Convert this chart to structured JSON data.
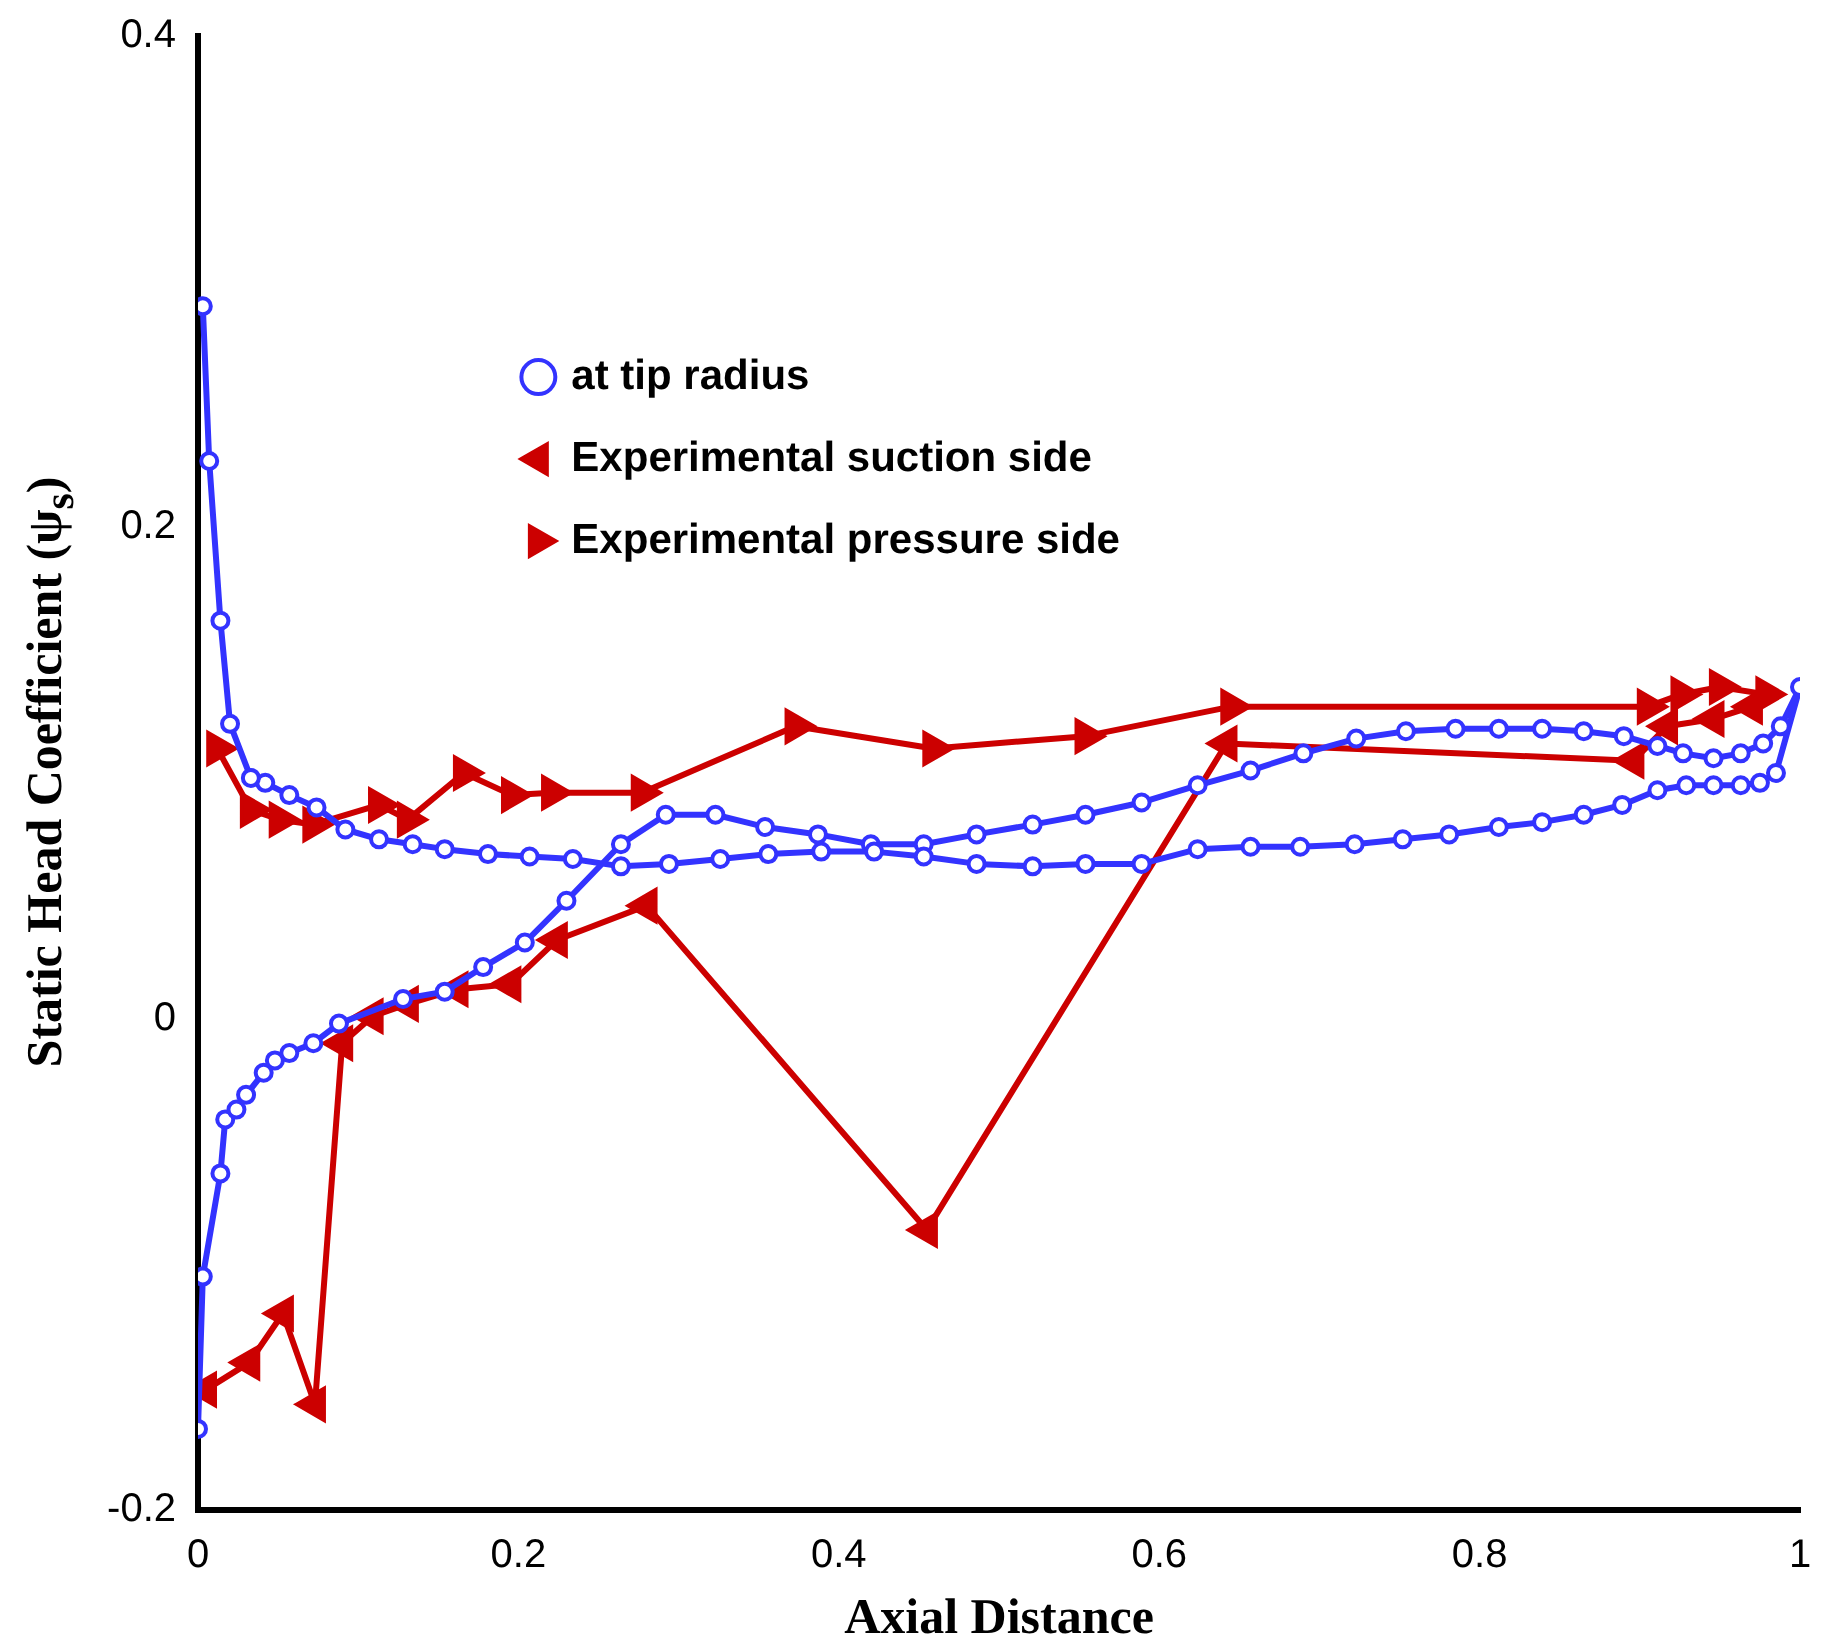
{
  "chart_data": {
    "type": "line",
    "xlabel": "Axial Distance",
    "ylabel": "Static Head Coefficient (ψ$_{s}$)",
    "xlim": [
      0,
      1
    ],
    "xticks": [
      0,
      0.2,
      0.4,
      0.6,
      0.8,
      1
    ],
    "ylim": [
      -0.2,
      0.4
    ],
    "yticks": [
      -0.2,
      0,
      0.2,
      0.4
    ],
    "grid": false,
    "legend": "top",
    "line_style": "solid",
    "series": [
      {
        "name": "at tip radius",
        "color": "#3333ff",
        "marker": "circle",
        "x": [
          0,
          0.003,
          0.014,
          0.017,
          0.024,
          0.03,
          0.041,
          0.048,
          0.057,
          0.072,
          0.088,
          0.128,
          0.154,
          0.178,
          0.204,
          0.23,
          0.264,
          0.292,
          0.323,
          0.354,
          0.387,
          0.42,
          0.453,
          0.486,
          0.521,
          0.554,
          0.589,
          0.624,
          0.657,
          0.69,
          0.723,
          0.754,
          0.785,
          0.812,
          0.839,
          0.865,
          0.89,
          0.911,
          0.927,
          0.946,
          0.963,
          0.977,
          0.988,
          1,
          0.985,
          0.975,
          0.963,
          0.946,
          0.929,
          0.911,
          0.889,
          0.865,
          0.839,
          0.812,
          0.781,
          0.752,
          0.722,
          0.688,
          0.657,
          0.624,
          0.589,
          0.554,
          0.521,
          0.486,
          0.453,
          0.422,
          0.389,
          0.356,
          0.326,
          0.294,
          0.264,
          0.234,
          0.207,
          0.181,
          0.154,
          0.134,
          0.113,
          0.092,
          0.074,
          0.057,
          0.042,
          0.033,
          0.02,
          0.014,
          0.007,
          0.003
        ],
        "values": [
          -0.167,
          -0.105,
          -0.063,
          -0.041,
          -0.037,
          -0.031,
          -0.022,
          -0.017,
          -0.014,
          -0.01,
          -0.002,
          0.008,
          0.011,
          0.021,
          0.031,
          0.048,
          0.071,
          0.083,
          0.083,
          0.078,
          0.075,
          0.071,
          0.071,
          0.075,
          0.079,
          0.083,
          0.088,
          0.095,
          0.101,
          0.108,
          0.114,
          0.117,
          0.118,
          0.118,
          0.118,
          0.117,
          0.115,
          0.111,
          0.108,
          0.106,
          0.108,
          0.112,
          0.119,
          0.135,
          0.1,
          0.096,
          0.095,
          0.095,
          0.095,
          0.093,
          0.087,
          0.083,
          0.08,
          0.078,
          0.075,
          0.073,
          0.071,
          0.07,
          0.07,
          0.069,
          0.063,
          0.063,
          0.062,
          0.063,
          0.066,
          0.068,
          0.068,
          0.067,
          0.065,
          0.063,
          0.062,
          0.065,
          0.066,
          0.067,
          0.069,
          0.071,
          0.073,
          0.077,
          0.086,
          0.091,
          0.096,
          0.098,
          0.12,
          0.162,
          0.227,
          0.29
        ]
      },
      {
        "name": "Experimental suction side",
        "color": "#cc0000",
        "marker": "triangle",
        "x": [
          0.005,
          0.032,
          0.053,
          0.073,
          0.09,
          0.109,
          0.131,
          0.162,
          0.195,
          0.224,
          0.28,
          0.455,
          0.642,
          0.896,
          0.917,
          0.946,
          0.97
        ],
        "values": [
          -0.151,
          -0.14,
          -0.12,
          -0.157,
          -0.01,
          0.001,
          0.006,
          0.012,
          0.014,
          0.032,
          0.046,
          -0.086,
          0.112,
          0.105,
          0.119,
          0.122,
          0.127
        ]
      },
      {
        "name": "Experimental pressure side",
        "color": "#cc0000",
        "marker": "triangle",
        "x": [
          0.012,
          0.033,
          0.051,
          0.072,
          0.113,
          0.131,
          0.166,
          0.196,
          0.221,
          0.277,
          0.373,
          0.459,
          0.554,
          0.645,
          0.905,
          0.926,
          0.95,
          0.979
        ],
        "values": [
          0.11,
          0.085,
          0.081,
          0.079,
          0.087,
          0.081,
          0.1,
          0.091,
          0.092,
          0.092,
          0.119,
          0.11,
          0.115,
          0.127,
          0.127,
          0.132,
          0.135,
          0.132
        ]
      }
    ]
  }
}
